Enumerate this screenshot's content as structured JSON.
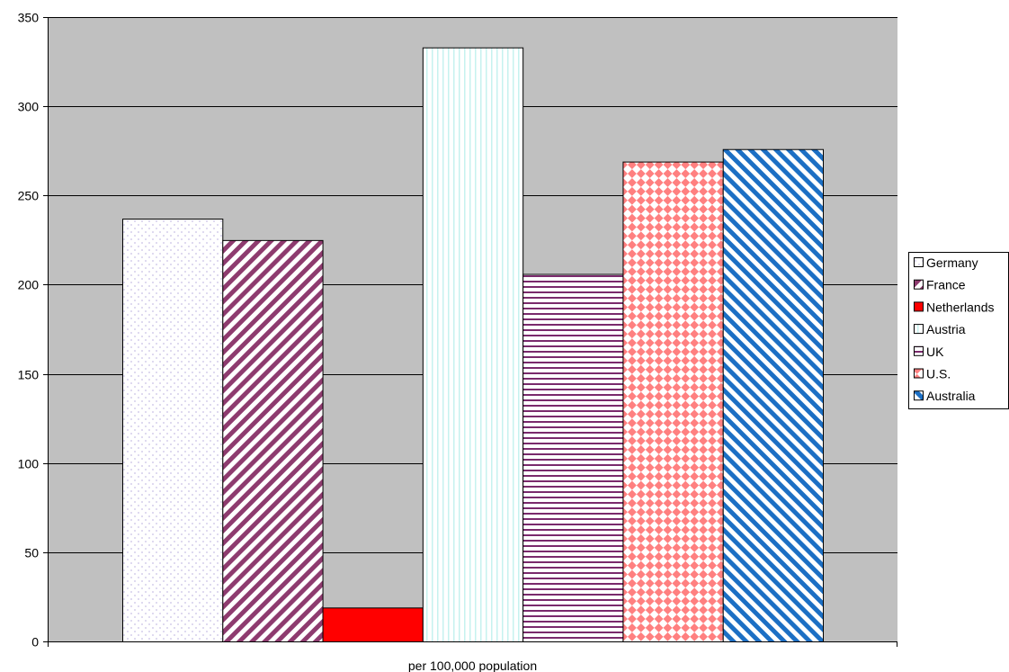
{
  "chart_data": {
    "type": "bar",
    "categories": [
      "per 100,000 population"
    ],
    "series": [
      {
        "name": "Germany",
        "values": [
          237
        ],
        "color": "#c8bfe6",
        "pattern": "dots"
      },
      {
        "name": "France",
        "values": [
          225
        ],
        "color": "#8e3b6f",
        "pattern": "diag-up"
      },
      {
        "name": "Netherlands",
        "values": [
          19
        ],
        "color": "#ff0000",
        "pattern": "solid"
      },
      {
        "name": "Austria",
        "values": [
          333
        ],
        "color": "#c6f2ef",
        "pattern": "vertical"
      },
      {
        "name": "UK",
        "values": [
          206
        ],
        "color": "#7a2a6c",
        "pattern": "horizontal"
      },
      {
        "name": "U.S.",
        "values": [
          269
        ],
        "color": "#ff8080",
        "pattern": "diamond"
      },
      {
        "name": "Australia",
        "values": [
          276
        ],
        "color": "#1c6fc4",
        "pattern": "diag-down"
      }
    ],
    "ylim": [
      0,
      350
    ],
    "yticks": [
      "0",
      "50",
      "100",
      "150",
      "200",
      "250",
      "300",
      "350"
    ],
    "ytick_values": [
      0,
      50,
      100,
      150,
      200,
      250,
      300,
      350
    ],
    "plot_background": "#c0c0c0",
    "grid": true,
    "legend_position": "right"
  }
}
